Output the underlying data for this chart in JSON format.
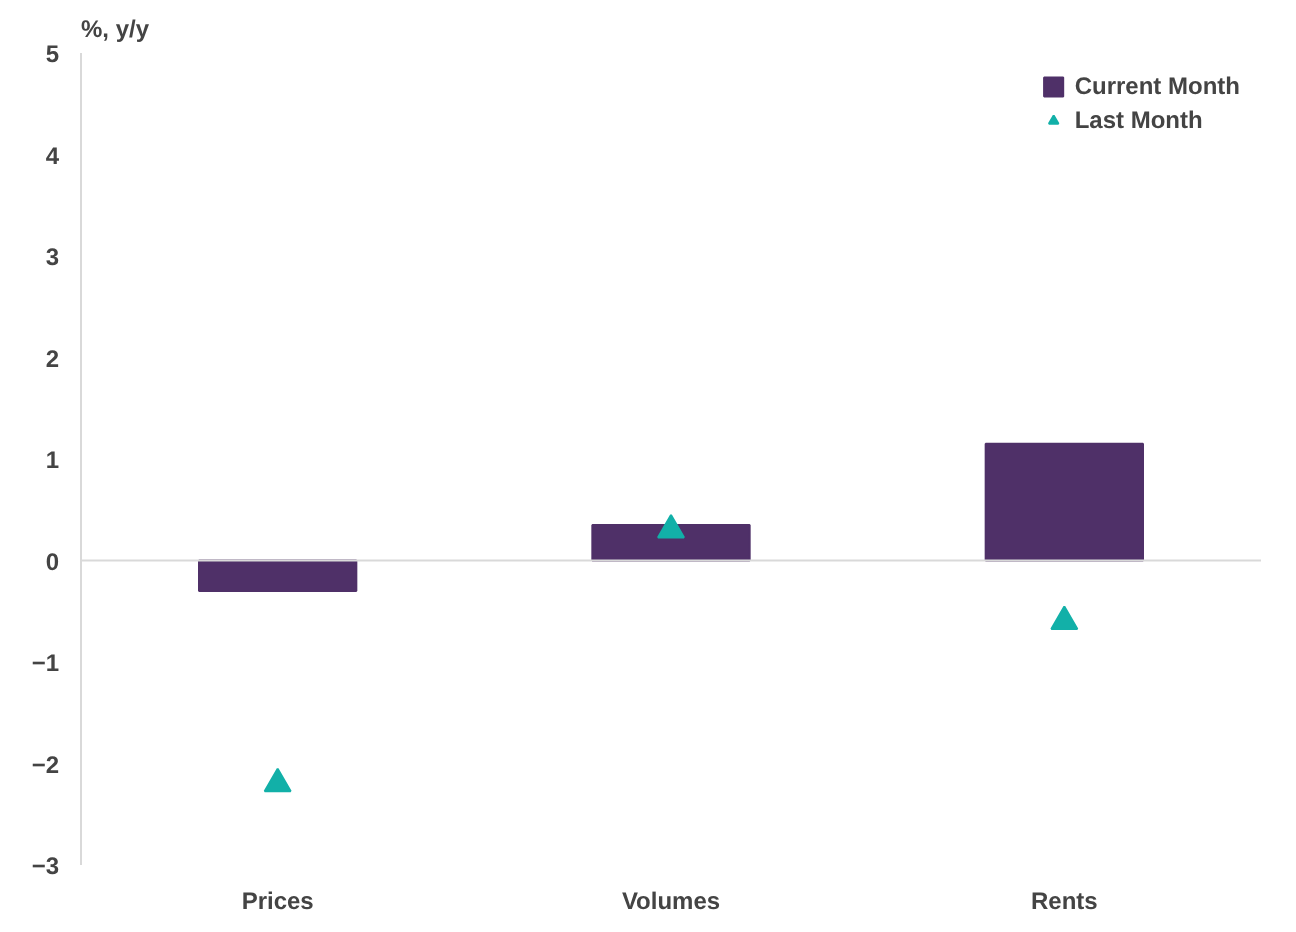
{
  "chart_data": {
    "type": "bar",
    "ylabel": "%, y/y",
    "categories": [
      "Prices",
      "Volumes",
      "Rents"
    ],
    "series": [
      {
        "name": "Current Month",
        "color": "#4f3068",
        "values": [
          -0.3,
          0.35,
          1.15
        ]
      },
      {
        "name": "Last Month",
        "type": "scatter",
        "color": "#12b0a8",
        "values": [
          -2.2,
          0.3,
          -0.6
        ]
      }
    ],
    "ylim": [
      -3,
      5
    ],
    "yticks": [
      -3,
      -2,
      -1,
      0,
      1,
      2,
      3,
      4,
      5
    ],
    "ref_lines": [
      {
        "axis": "y",
        "value": 0,
        "color": "#d9d9d9"
      }
    ],
    "marker": "triangle",
    "grid": false,
    "legend": "top right"
  }
}
